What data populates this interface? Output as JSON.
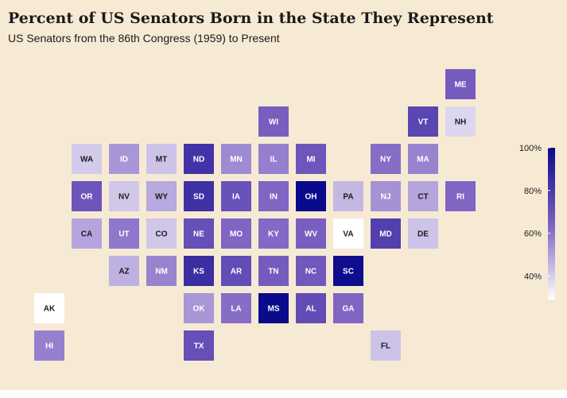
{
  "header": {
    "title": "Percent of US Senators Born in the State They Represent",
    "subtitle": "US Senators from the 86th Congress (1959) to Present"
  },
  "colors": {
    "background": "#f7ead5",
    "scale_low": "#ffffff",
    "scale_high": "#0a0a8c",
    "text_dark": "#1a1a1a",
    "text_light": "#ffffff"
  },
  "chart_data": {
    "type": "heatmap",
    "title": "Percent of US Senators Born in the State They Represent",
    "subtitle": "US Senators from the 86th Congress (1959) to Present",
    "value_unit": "%",
    "color_range": [
      29,
      100
    ],
    "legend": {
      "placement": "right",
      "ticks": [
        "40%",
        "60%",
        "80%",
        "100%"
      ],
      "tick_values": [
        40,
        60,
        80,
        100
      ]
    },
    "grid": {
      "columns": 12,
      "rows": 8
    },
    "cells": [
      {
        "state": "ME",
        "col": 11,
        "row": 0,
        "value": 73
      },
      {
        "state": "WI",
        "col": 6,
        "row": 1,
        "value": 72
      },
      {
        "state": "VT",
        "col": 10,
        "row": 1,
        "value": 80
      },
      {
        "state": "NH",
        "col": 11,
        "row": 1,
        "value": 40
      },
      {
        "state": "WA",
        "col": 1,
        "row": 2,
        "value": 43
      },
      {
        "state": "ID",
        "col": 2,
        "row": 2,
        "value": 57
      },
      {
        "state": "MT",
        "col": 3,
        "row": 2,
        "value": 45
      },
      {
        "state": "ND",
        "col": 4,
        "row": 2,
        "value": 86
      },
      {
        "state": "MN",
        "col": 5,
        "row": 2,
        "value": 60
      },
      {
        "state": "IL",
        "col": 6,
        "row": 2,
        "value": 63
      },
      {
        "state": "MI",
        "col": 7,
        "row": 2,
        "value": 75
      },
      {
        "state": "NY",
        "col": 9,
        "row": 2,
        "value": 68
      },
      {
        "state": "MA",
        "col": 10,
        "row": 2,
        "value": 62
      },
      {
        "state": "OR",
        "col": 1,
        "row": 3,
        "value": 75
      },
      {
        "state": "NV",
        "col": 2,
        "row": 3,
        "value": 44
      },
      {
        "state": "WY",
        "col": 3,
        "row": 3,
        "value": 52
      },
      {
        "state": "SD",
        "col": 4,
        "row": 3,
        "value": 87
      },
      {
        "state": "IA",
        "col": 5,
        "row": 3,
        "value": 76
      },
      {
        "state": "IN",
        "col": 6,
        "row": 3,
        "value": 70
      },
      {
        "state": "OH",
        "col": 7,
        "row": 3,
        "value": 100
      },
      {
        "state": "PA",
        "col": 8,
        "row": 3,
        "value": 48
      },
      {
        "state": "NJ",
        "col": 9,
        "row": 3,
        "value": 58
      },
      {
        "state": "CT",
        "col": 10,
        "row": 3,
        "value": 53
      },
      {
        "state": "RI",
        "col": 11,
        "row": 3,
        "value": 70
      },
      {
        "state": "CA",
        "col": 1,
        "row": 4,
        "value": 53
      },
      {
        "state": "UT",
        "col": 2,
        "row": 4,
        "value": 65
      },
      {
        "state": "CO",
        "col": 3,
        "row": 4,
        "value": 44
      },
      {
        "state": "NE",
        "col": 4,
        "row": 4,
        "value": 77
      },
      {
        "state": "MO",
        "col": 5,
        "row": 4,
        "value": 70
      },
      {
        "state": "KY",
        "col": 6,
        "row": 4,
        "value": 69
      },
      {
        "state": "WV",
        "col": 7,
        "row": 4,
        "value": 72
      },
      {
        "state": "VA",
        "col": 8,
        "row": 4,
        "value": 29
      },
      {
        "state": "MD",
        "col": 9,
        "row": 4,
        "value": 82
      },
      {
        "state": "DE",
        "col": 10,
        "row": 4,
        "value": 45
      },
      {
        "state": "AZ",
        "col": 2,
        "row": 5,
        "value": 50
      },
      {
        "state": "NM",
        "col": 3,
        "row": 5,
        "value": 62
      },
      {
        "state": "KS",
        "col": 4,
        "row": 5,
        "value": 88
      },
      {
        "state": "AR",
        "col": 5,
        "row": 5,
        "value": 78
      },
      {
        "state": "TN",
        "col": 6,
        "row": 5,
        "value": 73
      },
      {
        "state": "NC",
        "col": 7,
        "row": 5,
        "value": 74
      },
      {
        "state": "SC",
        "col": 8,
        "row": 5,
        "value": 99
      },
      {
        "state": "AK",
        "col": 0,
        "row": 6,
        "value": 29
      },
      {
        "state": "OK",
        "col": 4,
        "row": 6,
        "value": 57
      },
      {
        "state": "LA",
        "col": 5,
        "row": 6,
        "value": 68
      },
      {
        "state": "MS",
        "col": 6,
        "row": 6,
        "value": 100
      },
      {
        "state": "AL",
        "col": 7,
        "row": 6,
        "value": 78
      },
      {
        "state": "GA",
        "col": 8,
        "row": 6,
        "value": 70
      },
      {
        "state": "HI",
        "col": 0,
        "row": 7,
        "value": 63
      },
      {
        "state": "TX",
        "col": 4,
        "row": 7,
        "value": 77
      },
      {
        "state": "FL",
        "col": 9,
        "row": 7,
        "value": 45
      }
    ]
  }
}
